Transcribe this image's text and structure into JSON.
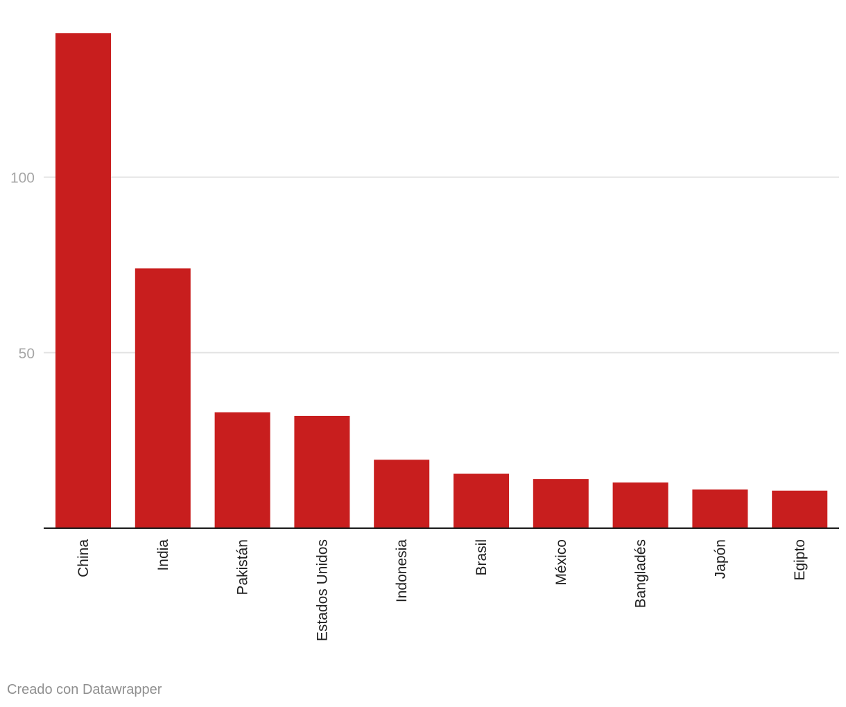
{
  "chart_data": {
    "type": "bar",
    "categories": [
      "China",
      "India",
      "Pakistán",
      "Estados Unidos",
      "Indonesia",
      "Brasil",
      "México",
      "Bangladés",
      "Japón",
      "Egipto"
    ],
    "values": [
      141,
      74,
      33,
      32,
      19.5,
      15.5,
      14,
      13,
      11,
      10.7
    ],
    "yticks": [
      50,
      100
    ],
    "ylim": [
      0,
      141
    ],
    "grid": true,
    "bar_color": "#c81e1e",
    "title": "",
    "xlabel": "",
    "ylabel": ""
  },
  "footer": {
    "credit": "Creado con Datawrapper"
  }
}
